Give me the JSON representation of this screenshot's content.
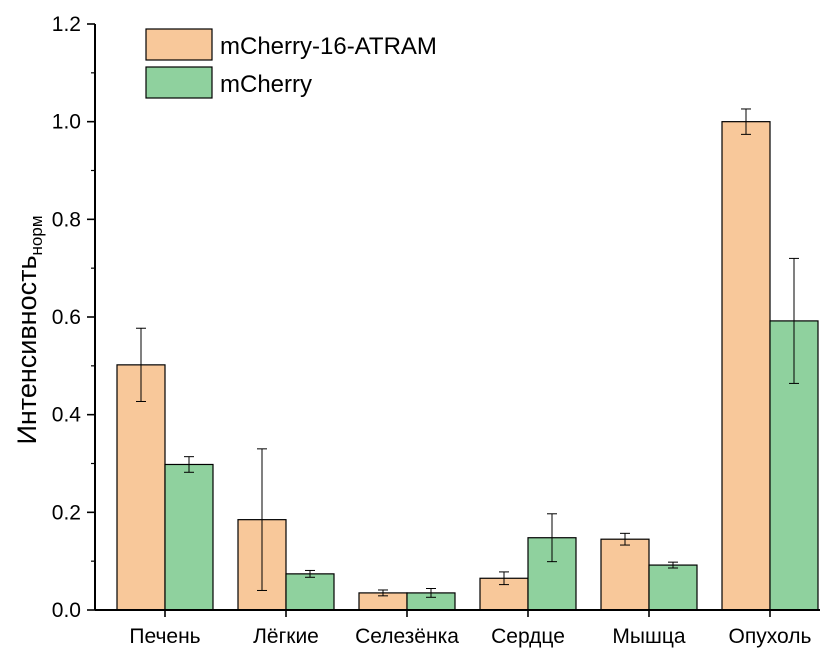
{
  "chart_data": {
    "type": "bar",
    "ylabel": "Интенсивность",
    "ylabel_subscript": "норм",
    "xlabel": "",
    "ylim": [
      0,
      1.2
    ],
    "yticks": [
      "0.0",
      "0.2",
      "0.4",
      "0.6",
      "0.8",
      "1.0",
      "1.2"
    ],
    "categories": [
      "Печень",
      "Лёгкие",
      "Селезёнка",
      "Сердце",
      "Мышца",
      "Опухоль"
    ],
    "series": [
      {
        "name": "mCherry-16-ATRAM",
        "color": "#f8c89a",
        "values": [
          0.502,
          0.185,
          0.035,
          0.065,
          0.145,
          1.0
        ],
        "errors": [
          0.075,
          0.145,
          0.006,
          0.013,
          0.012,
          0.026
        ]
      },
      {
        "name": "mCherry",
        "color": "#8fd19e",
        "values": [
          0.298,
          0.074,
          0.035,
          0.148,
          0.092,
          0.592
        ],
        "errors": [
          0.016,
          0.007,
          0.009,
          0.049,
          0.006,
          0.128
        ]
      }
    ],
    "legend_position": "top-left",
    "grid": false
  }
}
